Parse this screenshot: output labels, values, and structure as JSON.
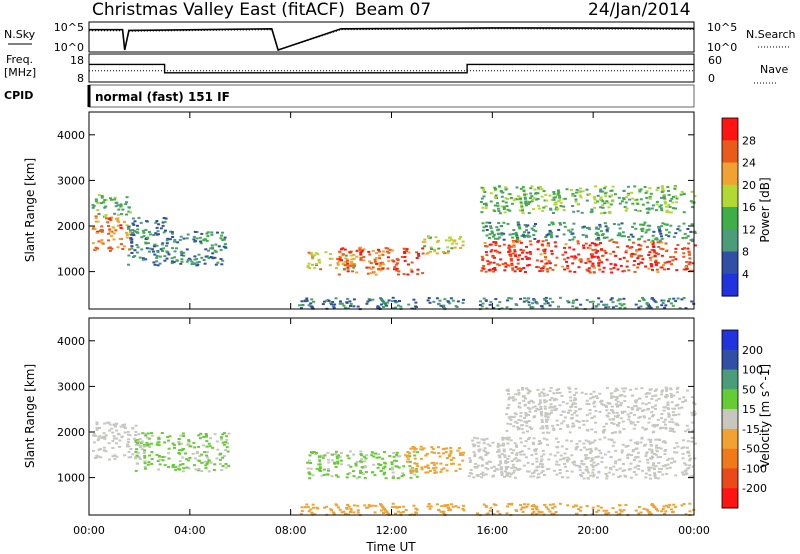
{
  "header": {
    "title": "Christmas Valley East (fitACF)",
    "beam": "Beam 07",
    "date": "24/Jan/2014"
  },
  "nsky_panel": {
    "left_label": "N.Sky",
    "left_ticks": [
      "10^5",
      "10^0"
    ],
    "right_ticks": [
      "10^5",
      "10^0"
    ],
    "right_label": "N.Search"
  },
  "freq_panel": {
    "left_label_line1": "Freq.",
    "left_label_line2": "[MHz]",
    "left_ticks": [
      "18",
      "8"
    ],
    "right_ticks": [
      "60",
      "0"
    ],
    "right_label": "Nave"
  },
  "cpid": {
    "label": "CPID",
    "value": "normal (fast) 151 IF"
  },
  "colors": {
    "power_scale": [
      "#2233dd",
      "#334fa5",
      "#4a9d78",
      "#3fad4a",
      "#b2d832",
      "#f2a232",
      "#ea5a1a",
      "#ff1414"
    ],
    "velocity_scale": [
      "#2233dd",
      "#334fa5",
      "#4a9d78",
      "#66cc33",
      "#c7c7c0",
      "#f2a232",
      "#f07a1a",
      "#ea4a1a",
      "#ff1414"
    ]
  },
  "chart_data": [
    {
      "type": "line",
      "panel": "n-sky",
      "y_scale": "log",
      "ylim": [
        1,
        100000
      ],
      "x": [
        "00:00",
        "01:20",
        "01:25",
        "01:35",
        "07:15",
        "07:30",
        "10:00",
        "14:00",
        "16:00",
        "20:00",
        "00:00"
      ],
      "series": [
        {
          "name": "N.Sky",
          "values": [
            8000,
            8000,
            1,
            6000,
            12000,
            1,
            12000,
            15000,
            18000,
            16000,
            14000
          ]
        },
        {
          "name": "N.Search",
          "values": [
            5000,
            5000,
            1,
            4000,
            8000,
            1,
            8000,
            10000,
            12000,
            10000,
            9000
          ]
        }
      ]
    },
    {
      "type": "line",
      "panel": "frequency",
      "ylim": [
        8,
        18
      ],
      "x": [
        "00:00",
        "03:00",
        "03:00",
        "07:15",
        "07:30",
        "15:00",
        "15:00",
        "00:00"
      ],
      "series": [
        {
          "name": "Freq.",
          "values": [
            14.5,
            14.5,
            11.0,
            11.0,
            11.0,
            11.0,
            14.5,
            14.5
          ]
        },
        {
          "name": "Nave",
          "values": [
            23,
            23,
            23,
            23,
            23,
            23,
            23,
            23
          ]
        }
      ]
    },
    {
      "type": "heatmap",
      "panel": "power",
      "ylabel": "Slant Range [km]",
      "x_ticks": [
        "00:00",
        "04:00",
        "08:00",
        "12:00",
        "16:00",
        "20:00",
        "00:00"
      ],
      "y_ticks": [
        1000,
        2000,
        3000,
        4000
      ],
      "ylim": [
        180,
        4500
      ],
      "colorbar": {
        "label": "Power [dB]",
        "ticks": [
          4,
          8,
          12,
          16,
          20,
          24,
          28
        ],
        "range": [
          0,
          32
        ]
      },
      "regions": [
        {
          "t": [
            0.1,
            1.6
          ],
          "r": [
            1450,
            2250
          ],
          "value": 24
        },
        {
          "t": [
            0.1,
            1.6
          ],
          "r": [
            2250,
            2700
          ],
          "value": 14
        },
        {
          "t": [
            1.5,
            3.0
          ],
          "r": [
            1150,
            2200
          ],
          "value": 9
        },
        {
          "t": [
            3.0,
            5.4
          ],
          "r": [
            1150,
            1900
          ],
          "value": 10
        },
        {
          "t": [
            8.6,
            10.5
          ],
          "r": [
            1050,
            1450
          ],
          "value": 20
        },
        {
          "t": [
            9.8,
            13.2
          ],
          "r": [
            950,
            1550
          ],
          "value": 26
        },
        {
          "t": [
            13.2,
            14.8
          ],
          "r": [
            1400,
            1800
          ],
          "value": 18
        },
        {
          "t": [
            15.5,
            24.0
          ],
          "r": [
            1000,
            1700
          ],
          "value": 28
        },
        {
          "t": [
            15.5,
            24.0
          ],
          "r": [
            1700,
            2100
          ],
          "value": 11
        },
        {
          "t": [
            15.5,
            24.0
          ],
          "r": [
            2300,
            2900
          ],
          "value": 15
        },
        {
          "t": [
            8.0,
            24.0
          ],
          "r": [
            200,
            450
          ],
          "value": 9
        }
      ]
    },
    {
      "type": "heatmap",
      "panel": "velocity",
      "ylabel": "Slant Range [km]",
      "xlabel": "Time UT",
      "x_ticks": [
        "00:00",
        "04:00",
        "08:00",
        "12:00",
        "16:00",
        "20:00",
        "00:00"
      ],
      "y_ticks": [
        1000,
        2000,
        3000,
        4000
      ],
      "ylim": [
        180,
        4500
      ],
      "colorbar": {
        "label": "Velocity [m s^-1]",
        "ticks": [
          200,
          100,
          50,
          15,
          -15,
          -50,
          -100,
          -200
        ],
        "range": [
          -250,
          250
        ]
      },
      "regions": [
        {
          "t": [
            0.1,
            2.0
          ],
          "r": [
            1400,
            2250
          ],
          "value": 0
        },
        {
          "t": [
            1.8,
            5.5
          ],
          "r": [
            1150,
            2000
          ],
          "value": 30
        },
        {
          "t": [
            8.6,
            13.0
          ],
          "r": [
            1000,
            1600
          ],
          "value": 30
        },
        {
          "t": [
            12.5,
            14.8
          ],
          "r": [
            1100,
            1700
          ],
          "value": -60
        },
        {
          "t": [
            15.0,
            24.0
          ],
          "r": [
            1000,
            1900
          ],
          "value": 0
        },
        {
          "t": [
            16.5,
            24.0
          ],
          "r": [
            2000,
            3000
          ],
          "value": 0
        },
        {
          "t": [
            8.0,
            24.0
          ],
          "r": [
            200,
            450
          ],
          "value": -60
        }
      ]
    }
  ]
}
